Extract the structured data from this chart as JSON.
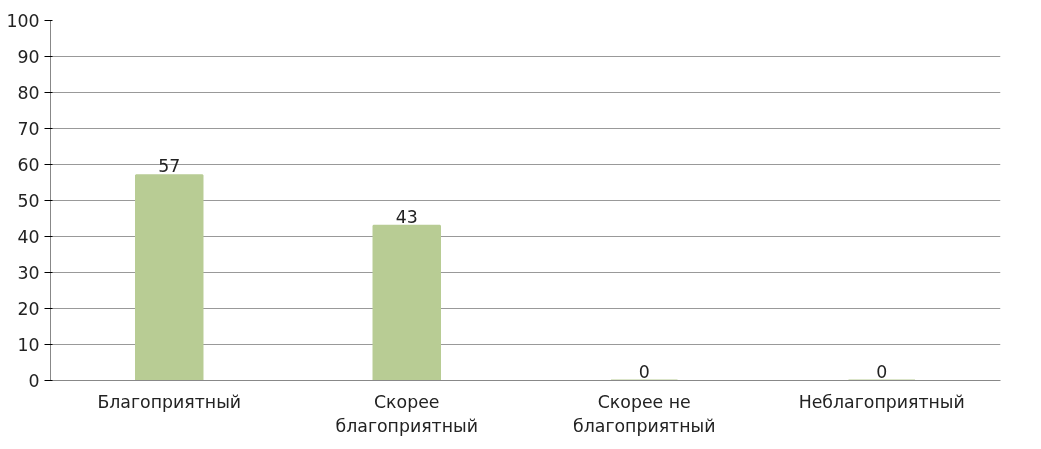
{
  "chart_data": {
    "type": "bar",
    "categories": [
      "Благоприятный",
      "Скорее благоприятный",
      "Скорее не благоприятный",
      "Неблагоприятный"
    ],
    "values": [
      57,
      43,
      0,
      0
    ],
    "color": "#b8cc94",
    "ylim": [
      0,
      100
    ],
    "yticks": [
      0,
      10,
      20,
      30,
      40,
      50,
      60,
      70,
      80,
      90,
      100
    ],
    "grid": "y",
    "data_labels": true
  }
}
